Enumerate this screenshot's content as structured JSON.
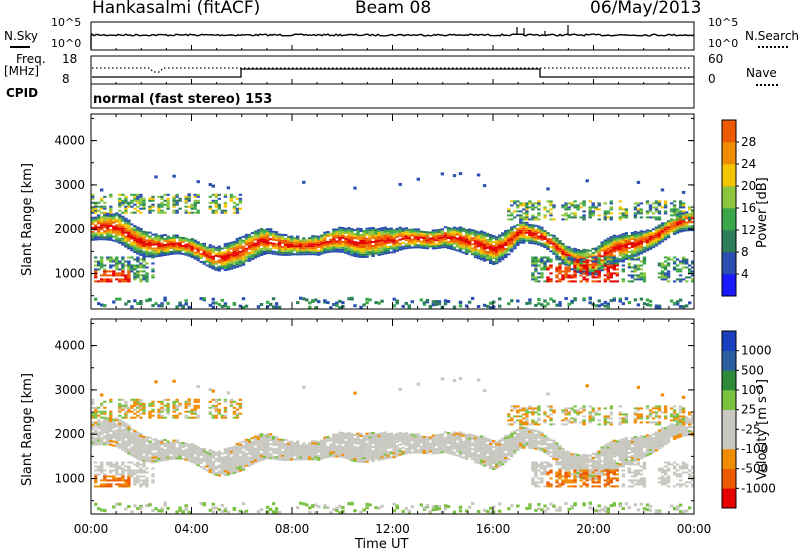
{
  "header": {
    "radar": "Hankasalmi (fitACF)",
    "beam": "Beam 08",
    "date": "06/May/2013"
  },
  "top_panels": {
    "n_sky_label": "N.Sky",
    "n_search_label": "N.Search",
    "noise_ticks_left": [
      "10^5",
      "10^0"
    ],
    "noise_ticks_right": [
      "10^5",
      "10^0"
    ],
    "freq_label_line1": "Freq.",
    "freq_label_line2": "[MHz]",
    "freq_ticks": [
      "18",
      "8"
    ],
    "nave_label": "Nave",
    "nave_ticks": [
      "60",
      "0"
    ],
    "cpid_label": "CPID",
    "cpid_text": "normal (fast stereo) 153"
  },
  "colors": {
    "power": [
      "#1a1aff",
      "#2a4fb0",
      "#2e7d5a",
      "#3aa84a",
      "#8cc63f",
      "#f5c400",
      "#f08c00",
      "#ee5a00",
      "#e60000"
    ],
    "velocity": [
      "#e60000",
      "#ee5a00",
      "#f08c00",
      "#c8c8c0",
      "#c8c8c0",
      "#7ac142",
      "#2e8b3a",
      "#2a5fa0",
      "#1a3fbf"
    ],
    "ground_scatter": "#c8c8c0"
  },
  "chart_data": [
    {
      "type": "heatmap",
      "panel": "power",
      "xlabel": "Time UT",
      "ylabel": "Slant Range [km]",
      "x_ticks": [
        "00:00",
        "04:00",
        "08:00",
        "12:00",
        "16:00",
        "20:00",
        "00:00"
      ],
      "xlim_hours": [
        0,
        24
      ],
      "y_ticks": [
        "4000",
        "3000",
        "2000",
        "1000"
      ],
      "ylim_km": [
        200,
        4600
      ],
      "colorbar": {
        "label": "Power [dB]",
        "ticks": [
          "28",
          "24",
          "20",
          "16",
          "12",
          "8",
          "4"
        ],
        "range": [
          0,
          32
        ]
      },
      "main_echo_band_km": {
        "hours": [
          0,
          1,
          2,
          3,
          4,
          5,
          6,
          7,
          8,
          9,
          10,
          11,
          12,
          13,
          14,
          15,
          16,
          17,
          18,
          19,
          20,
          21,
          22,
          23,
          24
        ],
        "range_km": [
          2000,
          1950,
          1750,
          1600,
          1500,
          1400,
          1450,
          1700,
          1700,
          1550,
          1750,
          1750,
          1650,
          1800,
          1850,
          1600,
          1550,
          1950,
          1700,
          1400,
          1250,
          1500,
          1800,
          2000,
          2150
        ]
      }
    },
    {
      "type": "heatmap",
      "panel": "velocity",
      "xlabel": "Time UT",
      "ylabel": "Slant Range [km]",
      "x_ticks": [
        "00:00",
        "04:00",
        "08:00",
        "12:00",
        "16:00",
        "20:00",
        "00:00"
      ],
      "xlim_hours": [
        0,
        24
      ],
      "y_ticks": [
        "4000",
        "3000",
        "2000",
        "1000"
      ],
      "ylim_km": [
        200,
        4600
      ],
      "colorbar": {
        "label": "Velocity [m s⁻¹]",
        "ticks": [
          "1000",
          "500",
          "100",
          "25",
          "-25",
          "-100",
          "-500",
          "-1000"
        ]
      }
    }
  ]
}
